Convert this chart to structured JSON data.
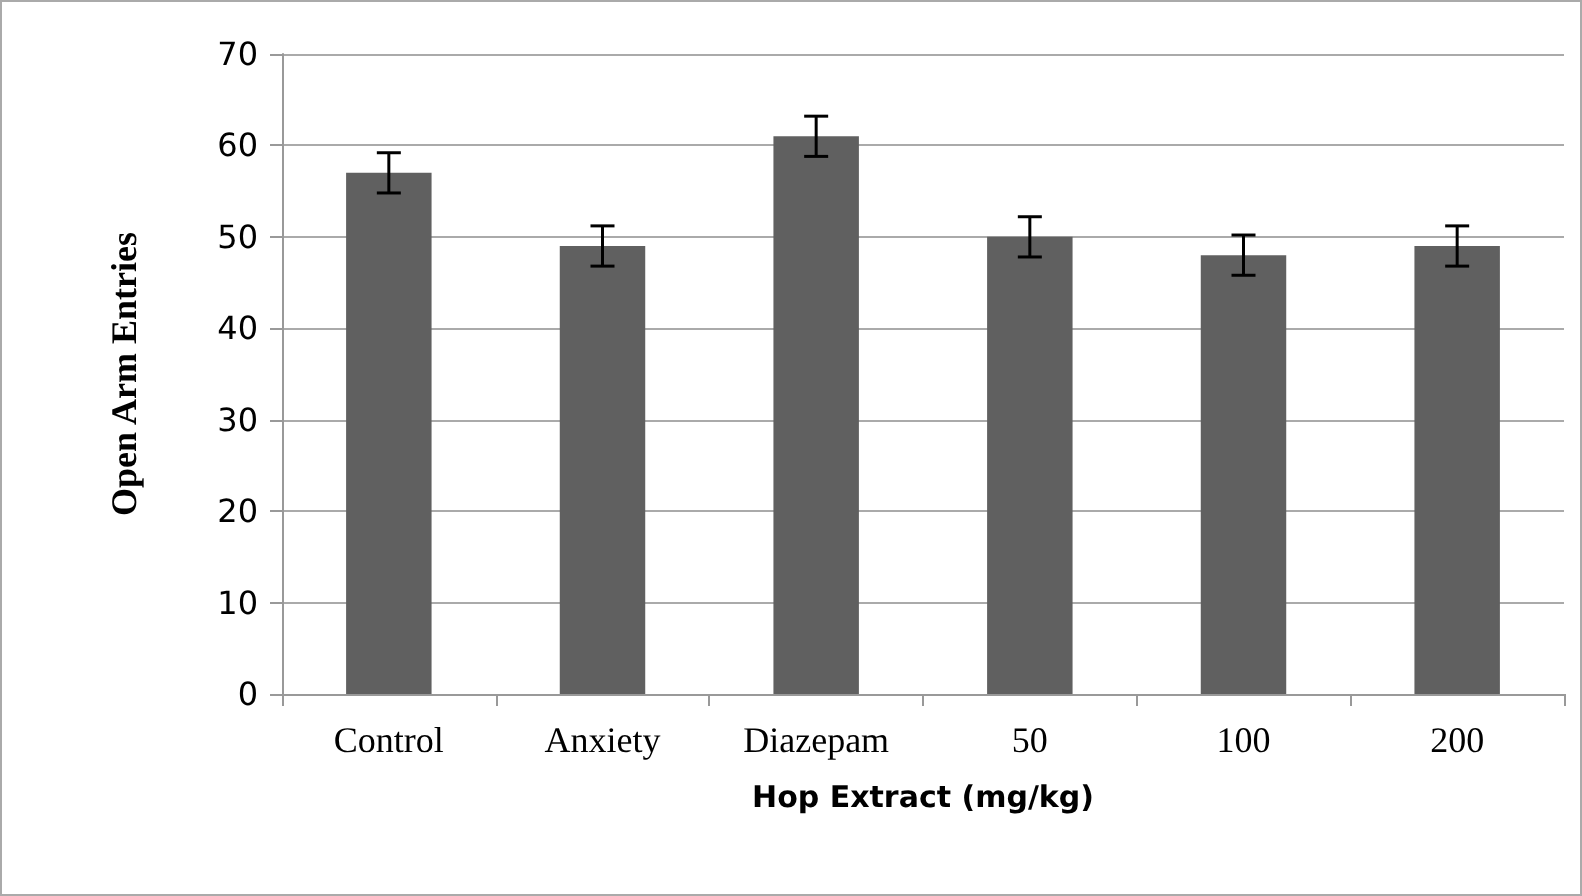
{
  "chart_data": {
    "type": "bar",
    "xlabel": "Hop Extract (mg/kg)",
    "ylabel": "Open Arm Entries",
    "categories": [
      "Control",
      "Anxiety",
      "Diazepam",
      "50",
      "100",
      "200"
    ],
    "values": [
      57,
      49,
      61,
      50,
      48,
      49
    ],
    "errors": [
      2.2,
      2.2,
      2.2,
      2.2,
      2.2,
      2.2
    ],
    "color": "#606060",
    "ylim": [
      0,
      70
    ],
    "yticks": [
      0,
      10,
      20,
      30,
      40,
      50,
      60,
      70
    ],
    "grid": "y"
  }
}
